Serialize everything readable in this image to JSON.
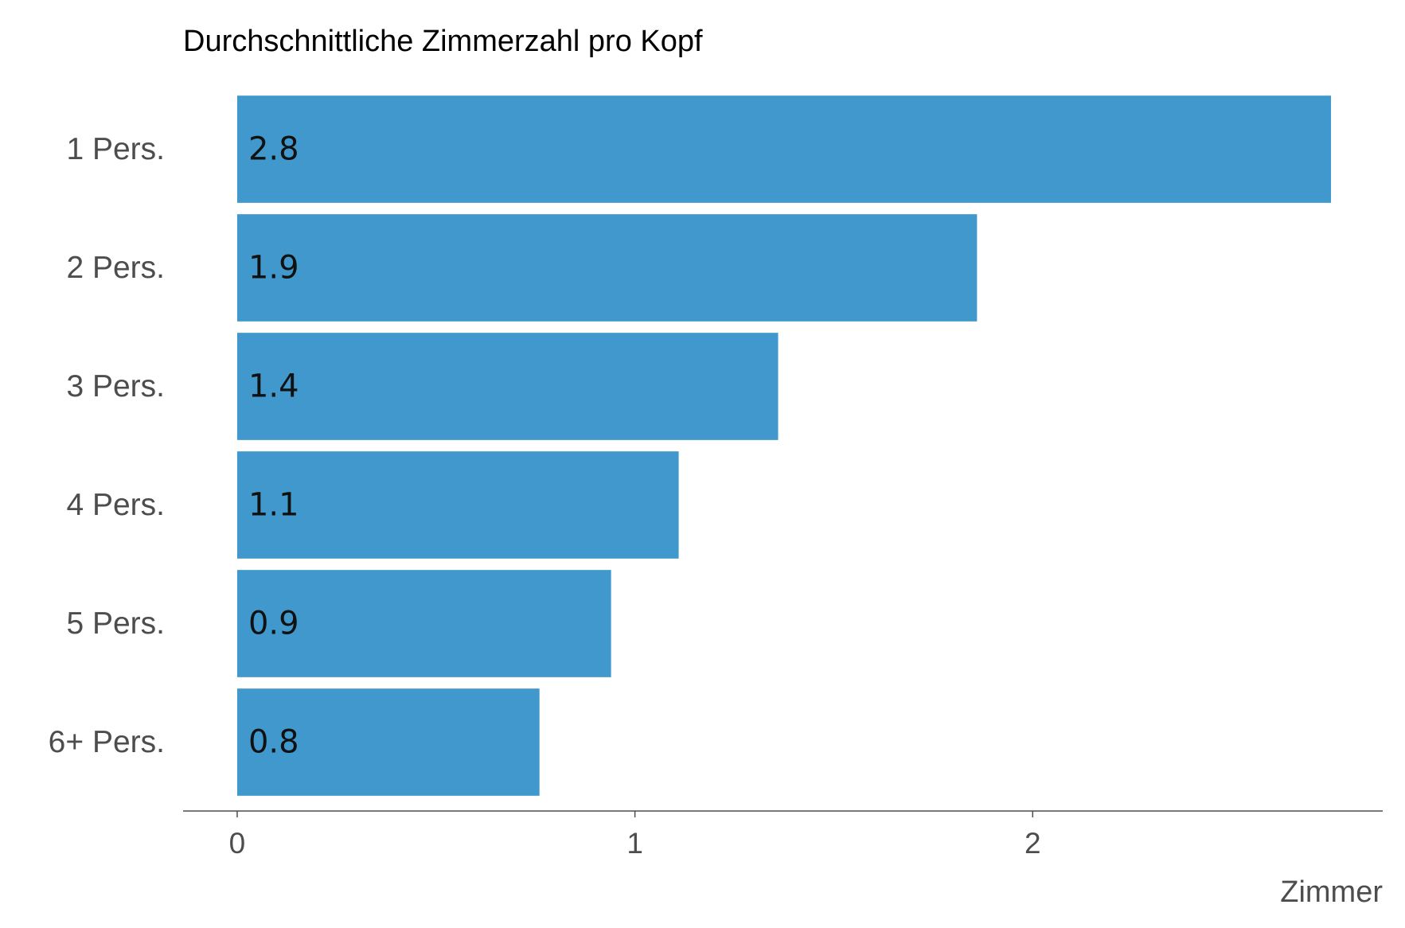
{
  "chart_data": {
    "type": "bar",
    "orientation": "horizontal",
    "title": "Durchschnittliche Zimmerzahl pro Kopf",
    "x_label": "Zimmer",
    "categories": [
      "1 Pers.",
      "2 Pers.",
      "3 Pers.",
      "4 Pers.",
      "5 Pers.",
      "6+ Pers."
    ],
    "values": [
      2.75,
      1.86,
      1.36,
      1.11,
      0.94,
      0.76
    ],
    "value_labels": [
      "2.8",
      "1.9",
      "1.4",
      "1.1",
      "0.9",
      "0.8"
    ],
    "color": "#4098cc",
    "xlim": [
      -0.136,
      2.88
    ],
    "xticks": [
      0,
      1,
      2
    ],
    "grid": false
  }
}
